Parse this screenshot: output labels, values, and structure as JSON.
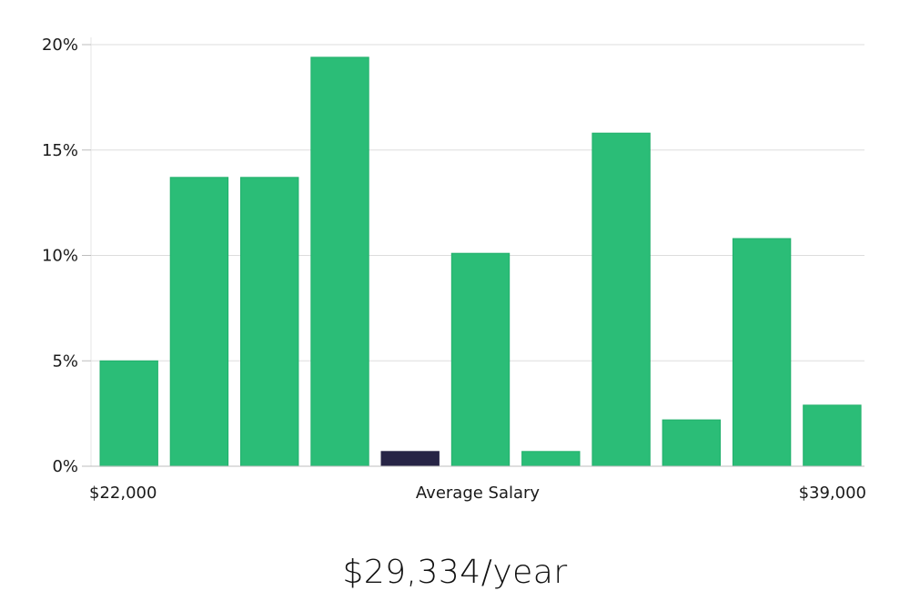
{
  "chart_data": {
    "type": "bar",
    "title": "",
    "xlabel": "Average Salary",
    "ylabel": "",
    "x_range_labels": {
      "start": "$22,000",
      "end": "$39,000"
    },
    "ylim": [
      0,
      20
    ],
    "yticks": [
      0,
      5,
      10,
      15,
      20
    ],
    "ytick_suffix": "%",
    "grid": true,
    "bars": [
      {
        "value": 5.0,
        "highlight": false
      },
      {
        "value": 13.7,
        "highlight": false
      },
      {
        "value": 13.7,
        "highlight": false
      },
      {
        "value": 19.4,
        "highlight": false
      },
      {
        "value": 0.7,
        "highlight": true
      },
      {
        "value": 10.1,
        "highlight": false
      },
      {
        "value": 0.7,
        "highlight": false
      },
      {
        "value": 15.8,
        "highlight": false
      },
      {
        "value": 2.2,
        "highlight": false
      },
      {
        "value": 10.8,
        "highlight": false
      },
      {
        "value": 2.9,
        "highlight": false
      }
    ],
    "colors": {
      "bar": "#2bbd77",
      "bar_edge": "#22b06c",
      "highlight": "#272446",
      "grid": "#dddddd",
      "axis": "#bdbdbd"
    }
  },
  "summary": {
    "average_salary_text": "$29,334/year"
  }
}
